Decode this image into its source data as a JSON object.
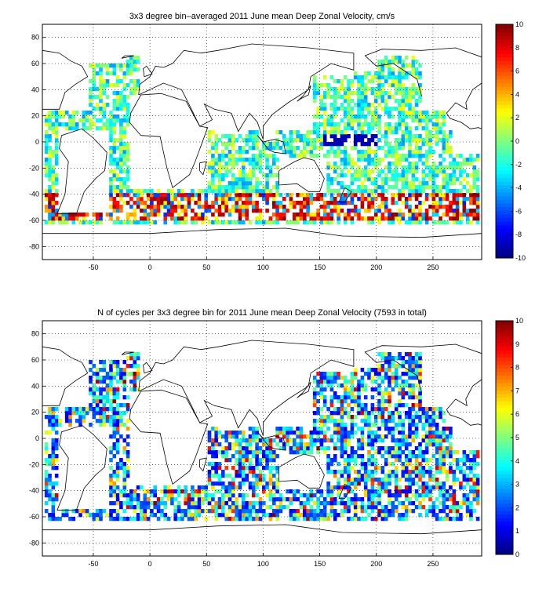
{
  "chart_data": [
    {
      "type": "heatmap",
      "title": "3x3 degree bin–averaged 2011 June mean Deep Zonal Velocity, cm/s",
      "xlim": [
        -95,
        293
      ],
      "ylim": [
        -90,
        90
      ],
      "x_ticks": [
        -50,
        0,
        50,
        100,
        150,
        200,
        250
      ],
      "y_ticks": [
        80,
        60,
        40,
        20,
        0,
        -20,
        -40,
        -60,
        -80
      ],
      "grid": true,
      "colorbar": {
        "min": -10,
        "max": 10,
        "ticks": [
          10,
          8,
          6,
          4,
          2,
          0,
          -2,
          -4,
          -6,
          -8,
          -10
        ],
        "colormap": "jet"
      }
    },
    {
      "type": "heatmap",
      "title": "N of cycles per 3x3 degree bin for 2011 June mean Deep Zonal Velocity (7593 in total)",
      "xlim": [
        -95,
        293
      ],
      "ylim": [
        -90,
        90
      ],
      "x_ticks": [
        -50,
        0,
        50,
        100,
        150,
        200,
        250
      ],
      "y_ticks": [
        80,
        60,
        40,
        20,
        0,
        -20,
        -40,
        -60,
        -80
      ],
      "grid": true,
      "colorbar": {
        "min": 0,
        "max": 10,
        "ticks": [
          10,
          9,
          8,
          7,
          6,
          5,
          4,
          3,
          2,
          1,
          0
        ],
        "colormap": "jet"
      }
    }
  ]
}
